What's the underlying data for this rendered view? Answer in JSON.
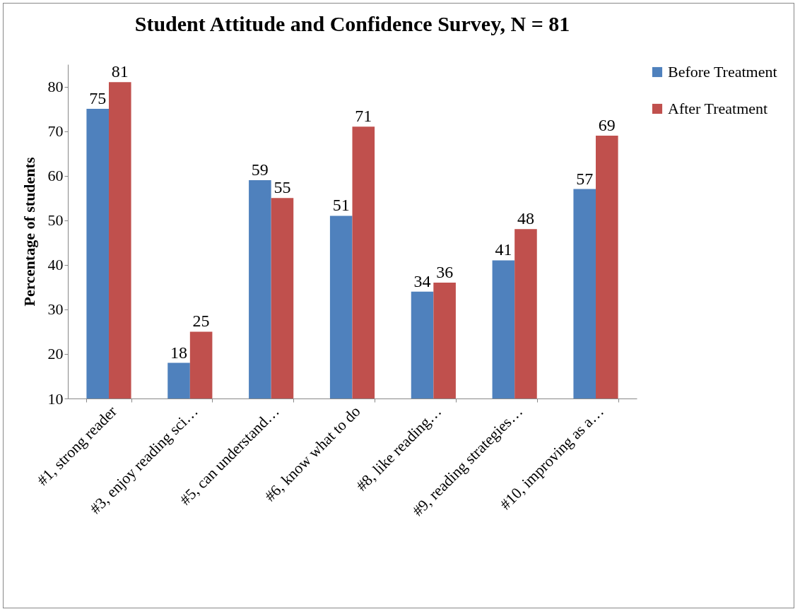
{
  "chart_data": {
    "type": "bar",
    "title": "Student Attitude and Confidence Survey, N = 81",
    "ylabel": "Percentage of students",
    "categories": [
      "#1, strong reader",
      "#3, enjoy reading sci…",
      "#5, can understand…",
      "#6, know what to do",
      "#8, like reading…",
      "#9, reading strategies…",
      "#10, improving as a…"
    ],
    "series": [
      {
        "name": "Before Treatment",
        "color": "#4f81bd",
        "values": [
          75,
          18,
          59,
          51,
          34,
          41,
          57
        ]
      },
      {
        "name": "After Treatment",
        "color": "#c0504d",
        "values": [
          81,
          25,
          55,
          71,
          36,
          48,
          69
        ]
      }
    ],
    "ylim": [
      10,
      85
    ],
    "yticks": [
      10,
      20,
      30,
      40,
      50,
      60,
      70,
      80
    ],
    "grid": false,
    "legend": "right",
    "data_labels": true
  }
}
